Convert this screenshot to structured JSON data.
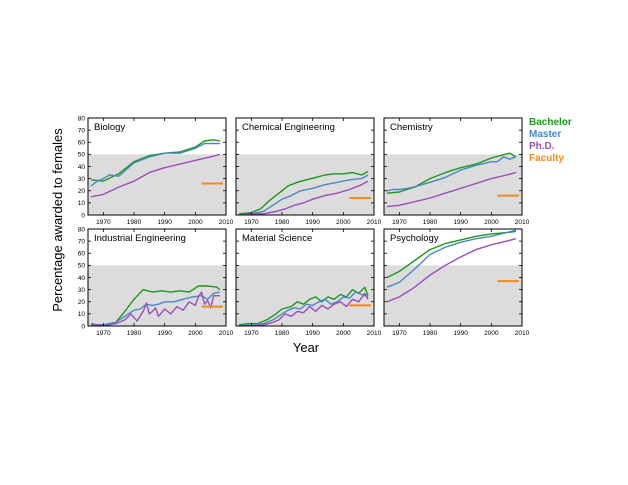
{
  "figure": {
    "ylabel": "Percentage awarded to females",
    "xlabel": "Year",
    "legend": [
      {
        "label": "Bachelor",
        "color": "#1a9a1a"
      },
      {
        "label": "Master",
        "color": "#4a86c8"
      },
      {
        "label": "Ph.D.",
        "color": "#9b4fb8"
      },
      {
        "label": "Faculty",
        "color": "#f28a1a"
      }
    ]
  },
  "chart_data": [
    {
      "type": "line",
      "title": "Biology",
      "xlim": [
        1965,
        2010
      ],
      "ylim": [
        0,
        80
      ],
      "xticks": [
        1970,
        1980,
        1990,
        2000,
        2010
      ],
      "yticks": [
        0,
        10,
        20,
        30,
        40,
        50,
        60,
        70,
        80
      ],
      "show_ytick_labels": true,
      "show_xtick_labels": true,
      "shaded_band": [
        0,
        50
      ],
      "series": [
        {
          "name": "Bachelor",
          "x": [
            1966,
            1970,
            1975,
            1980,
            1985,
            1990,
            1995,
            2000,
            2003,
            2006,
            2008
          ],
          "y": [
            29,
            28,
            34,
            44,
            49,
            51,
            52,
            56,
            61,
            62,
            61
          ]
        },
        {
          "name": "Master",
          "x": [
            1966,
            1968,
            1970,
            1972,
            1975,
            1980,
            1985,
            1990,
            1995,
            2000,
            2003,
            2006,
            2008
          ],
          "y": [
            24,
            28,
            30,
            33,
            32,
            43,
            48,
            51,
            51,
            55,
            59,
            59,
            59
          ]
        },
        {
          "name": "Ph.D.",
          "x": [
            1966,
            1970,
            1975,
            1980,
            1985,
            1990,
            1995,
            2000,
            2005,
            2008
          ],
          "y": [
            15,
            17,
            23,
            28,
            35,
            39,
            42,
            45,
            48,
            50
          ]
        },
        {
          "name": "Faculty",
          "x": [
            2002,
            2009
          ],
          "y": [
            26,
            26
          ]
        }
      ]
    },
    {
      "type": "line",
      "title": "Chemical Engineering",
      "xlim": [
        1965,
        2010
      ],
      "ylim": [
        0,
        80
      ],
      "xticks": [
        1970,
        1980,
        1990,
        2000,
        2010
      ],
      "yticks": [
        0,
        10,
        20,
        30,
        40,
        50,
        60,
        70,
        80
      ],
      "show_ytick_labels": false,
      "show_xtick_labels": true,
      "shaded_band": [
        0,
        50
      ],
      "series": [
        {
          "name": "Bachelor",
          "x": [
            1966,
            1970,
            1973,
            1976,
            1979,
            1982,
            1985,
            1988,
            1991,
            1994,
            1997,
            2000,
            2003,
            2006,
            2008
          ],
          "y": [
            1,
            2,
            5,
            12,
            18,
            24,
            27,
            29,
            31,
            33,
            34,
            34,
            35,
            33,
            36
          ]
        },
        {
          "name": "Master",
          "x": [
            1966,
            1970,
            1974,
            1977,
            1980,
            1983,
            1986,
            1990,
            1994,
            1998,
            2002,
            2006,
            2008
          ],
          "y": [
            0,
            1,
            3,
            8,
            13,
            16,
            20,
            22,
            25,
            27,
            29,
            30,
            33
          ]
        },
        {
          "name": "Ph.D.",
          "x": [
            1966,
            1970,
            1974,
            1978,
            1981,
            1984,
            1987,
            1990,
            1994,
            1998,
            2002,
            2006,
            2008
          ],
          "y": [
            0,
            1,
            1,
            3,
            5,
            8,
            10,
            13,
            16,
            18,
            21,
            25,
            28
          ]
        },
        {
          "name": "Faculty",
          "x": [
            2002,
            2009
          ],
          "y": [
            14,
            14
          ]
        }
      ]
    },
    {
      "type": "line",
      "title": "Chemistry",
      "xlim": [
        1965,
        2010
      ],
      "ylim": [
        0,
        80
      ],
      "xticks": [
        1970,
        1980,
        1990,
        2000,
        2010
      ],
      "yticks": [
        0,
        10,
        20,
        30,
        40,
        50,
        60,
        70,
        80
      ],
      "show_ytick_labels": false,
      "show_xtick_labels": true,
      "shaded_band": [
        0,
        50
      ],
      "series": [
        {
          "name": "Bachelor",
          "x": [
            1966,
            1970,
            1975,
            1980,
            1985,
            1990,
            1995,
            2000,
            2003,
            2006,
            2008
          ],
          "y": [
            18,
            19,
            23,
            30,
            35,
            39,
            42,
            47,
            49,
            51,
            48
          ]
        },
        {
          "name": "Master",
          "x": [
            1966,
            1968,
            1970,
            1973,
            1976,
            1980,
            1985,
            1990,
            1995,
            2000,
            2002,
            2004,
            2006,
            2008
          ],
          "y": [
            20,
            21,
            21,
            22,
            24,
            27,
            31,
            37,
            41,
            44,
            44,
            48,
            46,
            48
          ]
        },
        {
          "name": "Ph.D.",
          "x": [
            1966,
            1970,
            1975,
            1980,
            1985,
            1990,
            1995,
            2000,
            2005,
            2008
          ],
          "y": [
            7,
            8,
            11,
            14,
            18,
            22,
            26,
            30,
            33,
            35
          ]
        },
        {
          "name": "Faculty",
          "x": [
            2002,
            2009
          ],
          "y": [
            16,
            16
          ]
        }
      ]
    },
    {
      "type": "line",
      "title": "Industrial Engineering",
      "xlim": [
        1965,
        2010
      ],
      "ylim": [
        0,
        80
      ],
      "xticks": [
        1970,
        1980,
        1990,
        2000,
        2010
      ],
      "yticks": [
        0,
        10,
        20,
        30,
        40,
        50,
        60,
        70,
        80
      ],
      "show_ytick_labels": true,
      "show_xtick_labels": true,
      "shaded_band": [
        0,
        50
      ],
      "series": [
        {
          "name": "Bachelor",
          "x": [
            1966,
            1970,
            1974,
            1977,
            1980,
            1983,
            1986,
            1989,
            1992,
            1995,
            1998,
            2001,
            2004,
            2007,
            2008
          ],
          "y": [
            1,
            1,
            3,
            12,
            22,
            30,
            28,
            29,
            28,
            29,
            28,
            33,
            33,
            32,
            30
          ]
        },
        {
          "name": "Master",
          "x": [
            1966,
            1970,
            1974,
            1977,
            1980,
            1982,
            1984,
            1986,
            1988,
            1990,
            1993,
            1996,
            1999,
            2002,
            2004,
            2006,
            2008
          ],
          "y": [
            1,
            1,
            3,
            8,
            13,
            14,
            18,
            17,
            18,
            20,
            20,
            22,
            24,
            25,
            22,
            27,
            28
          ]
        },
        {
          "name": "Ph.D.",
          "x": [
            1966,
            1970,
            1974,
            1977,
            1979,
            1981,
            1983,
            1984,
            1985,
            1986,
            1987,
            1988,
            1990,
            1992,
            1994,
            1996,
            1998,
            2000,
            2001,
            2002,
            2003,
            2004,
            2005,
            2006,
            2008
          ],
          "y": [
            2,
            0,
            2,
            5,
            10,
            4,
            12,
            19,
            10,
            12,
            15,
            8,
            14,
            10,
            16,
            13,
            20,
            17,
            24,
            28,
            18,
            21,
            15,
            25,
            25
          ]
        },
        {
          "name": "Faculty",
          "x": [
            2002,
            2009
          ],
          "y": [
            16,
            16
          ]
        }
      ]
    },
    {
      "type": "line",
      "title": "Material Science",
      "xlim": [
        1965,
        2010
      ],
      "ylim": [
        0,
        80
      ],
      "xticks": [
        1970,
        1980,
        1990,
        2000,
        2010
      ],
      "yticks": [
        0,
        10,
        20,
        30,
        40,
        50,
        60,
        70,
        80
      ],
      "show_ytick_labels": false,
      "show_xtick_labels": true,
      "shaded_band": [
        0,
        50
      ],
      "series": [
        {
          "name": "Bachelor",
          "x": [
            1966,
            1969,
            1972,
            1975,
            1978,
            1980,
            1983,
            1985,
            1987,
            1989,
            1991,
            1993,
            1995,
            1997,
            1999,
            2001,
            2003,
            2005,
            2007,
            2008
          ],
          "y": [
            1,
            2,
            2,
            5,
            10,
            14,
            16,
            20,
            18,
            22,
            24,
            20,
            24,
            22,
            26,
            24,
            30,
            27,
            32,
            25
          ]
        },
        {
          "name": "Master",
          "x": [
            1966,
            1970,
            1974,
            1977,
            1980,
            1982,
            1984,
            1986,
            1988,
            1990,
            1992,
            1994,
            1996,
            1998,
            2000,
            2002,
            2004,
            2006,
            2008
          ],
          "y": [
            0,
            1,
            2,
            5,
            10,
            13,
            15,
            14,
            18,
            17,
            20,
            22,
            18,
            20,
            24,
            23,
            28,
            26,
            24
          ]
        },
        {
          "name": "Ph.D.",
          "x": [
            1966,
            1970,
            1974,
            1977,
            1979,
            1981,
            1983,
            1985,
            1987,
            1989,
            1991,
            1993,
            1995,
            1997,
            1999,
            2001,
            2003,
            2005,
            2007,
            2008
          ],
          "y": [
            0,
            0,
            1,
            3,
            5,
            10,
            8,
            12,
            11,
            16,
            12,
            17,
            14,
            18,
            20,
            16,
            22,
            20,
            27,
            22
          ]
        },
        {
          "name": "Faculty",
          "x": [
            2002,
            2009
          ],
          "y": [
            17,
            17
          ]
        }
      ]
    },
    {
      "type": "line",
      "title": "Psychology",
      "xlim": [
        1965,
        2010
      ],
      "ylim": [
        0,
        80
      ],
      "xticks": [
        1970,
        1980,
        1990,
        2000,
        2010
      ],
      "yticks": [
        0,
        10,
        20,
        30,
        40,
        50,
        60,
        70,
        80
      ],
      "show_ytick_labels": false,
      "show_xtick_labels": true,
      "shaded_band": [
        0,
        50
      ],
      "series": [
        {
          "name": "Bachelor",
          "x": [
            1966,
            1970,
            1975,
            1980,
            1985,
            1990,
            1995,
            2000,
            2005,
            2008
          ],
          "y": [
            40,
            45,
            54,
            63,
            68,
            71,
            74,
            76,
            77,
            78
          ]
        },
        {
          "name": "Master",
          "x": [
            1966,
            1970,
            1975,
            1980,
            1985,
            1990,
            1995,
            2000,
            2005,
            2008
          ],
          "y": [
            32,
            36,
            47,
            59,
            65,
            69,
            72,
            74,
            77,
            79
          ]
        },
        {
          "name": "Ph.D.",
          "x": [
            1966,
            1970,
            1975,
            1980,
            1985,
            1990,
            1995,
            2000,
            2005,
            2008
          ],
          "y": [
            20,
            24,
            32,
            42,
            50,
            57,
            63,
            67,
            70,
            72
          ]
        },
        {
          "name": "Faculty",
          "x": [
            2002,
            2009
          ],
          "y": [
            37,
            37
          ]
        }
      ]
    }
  ]
}
